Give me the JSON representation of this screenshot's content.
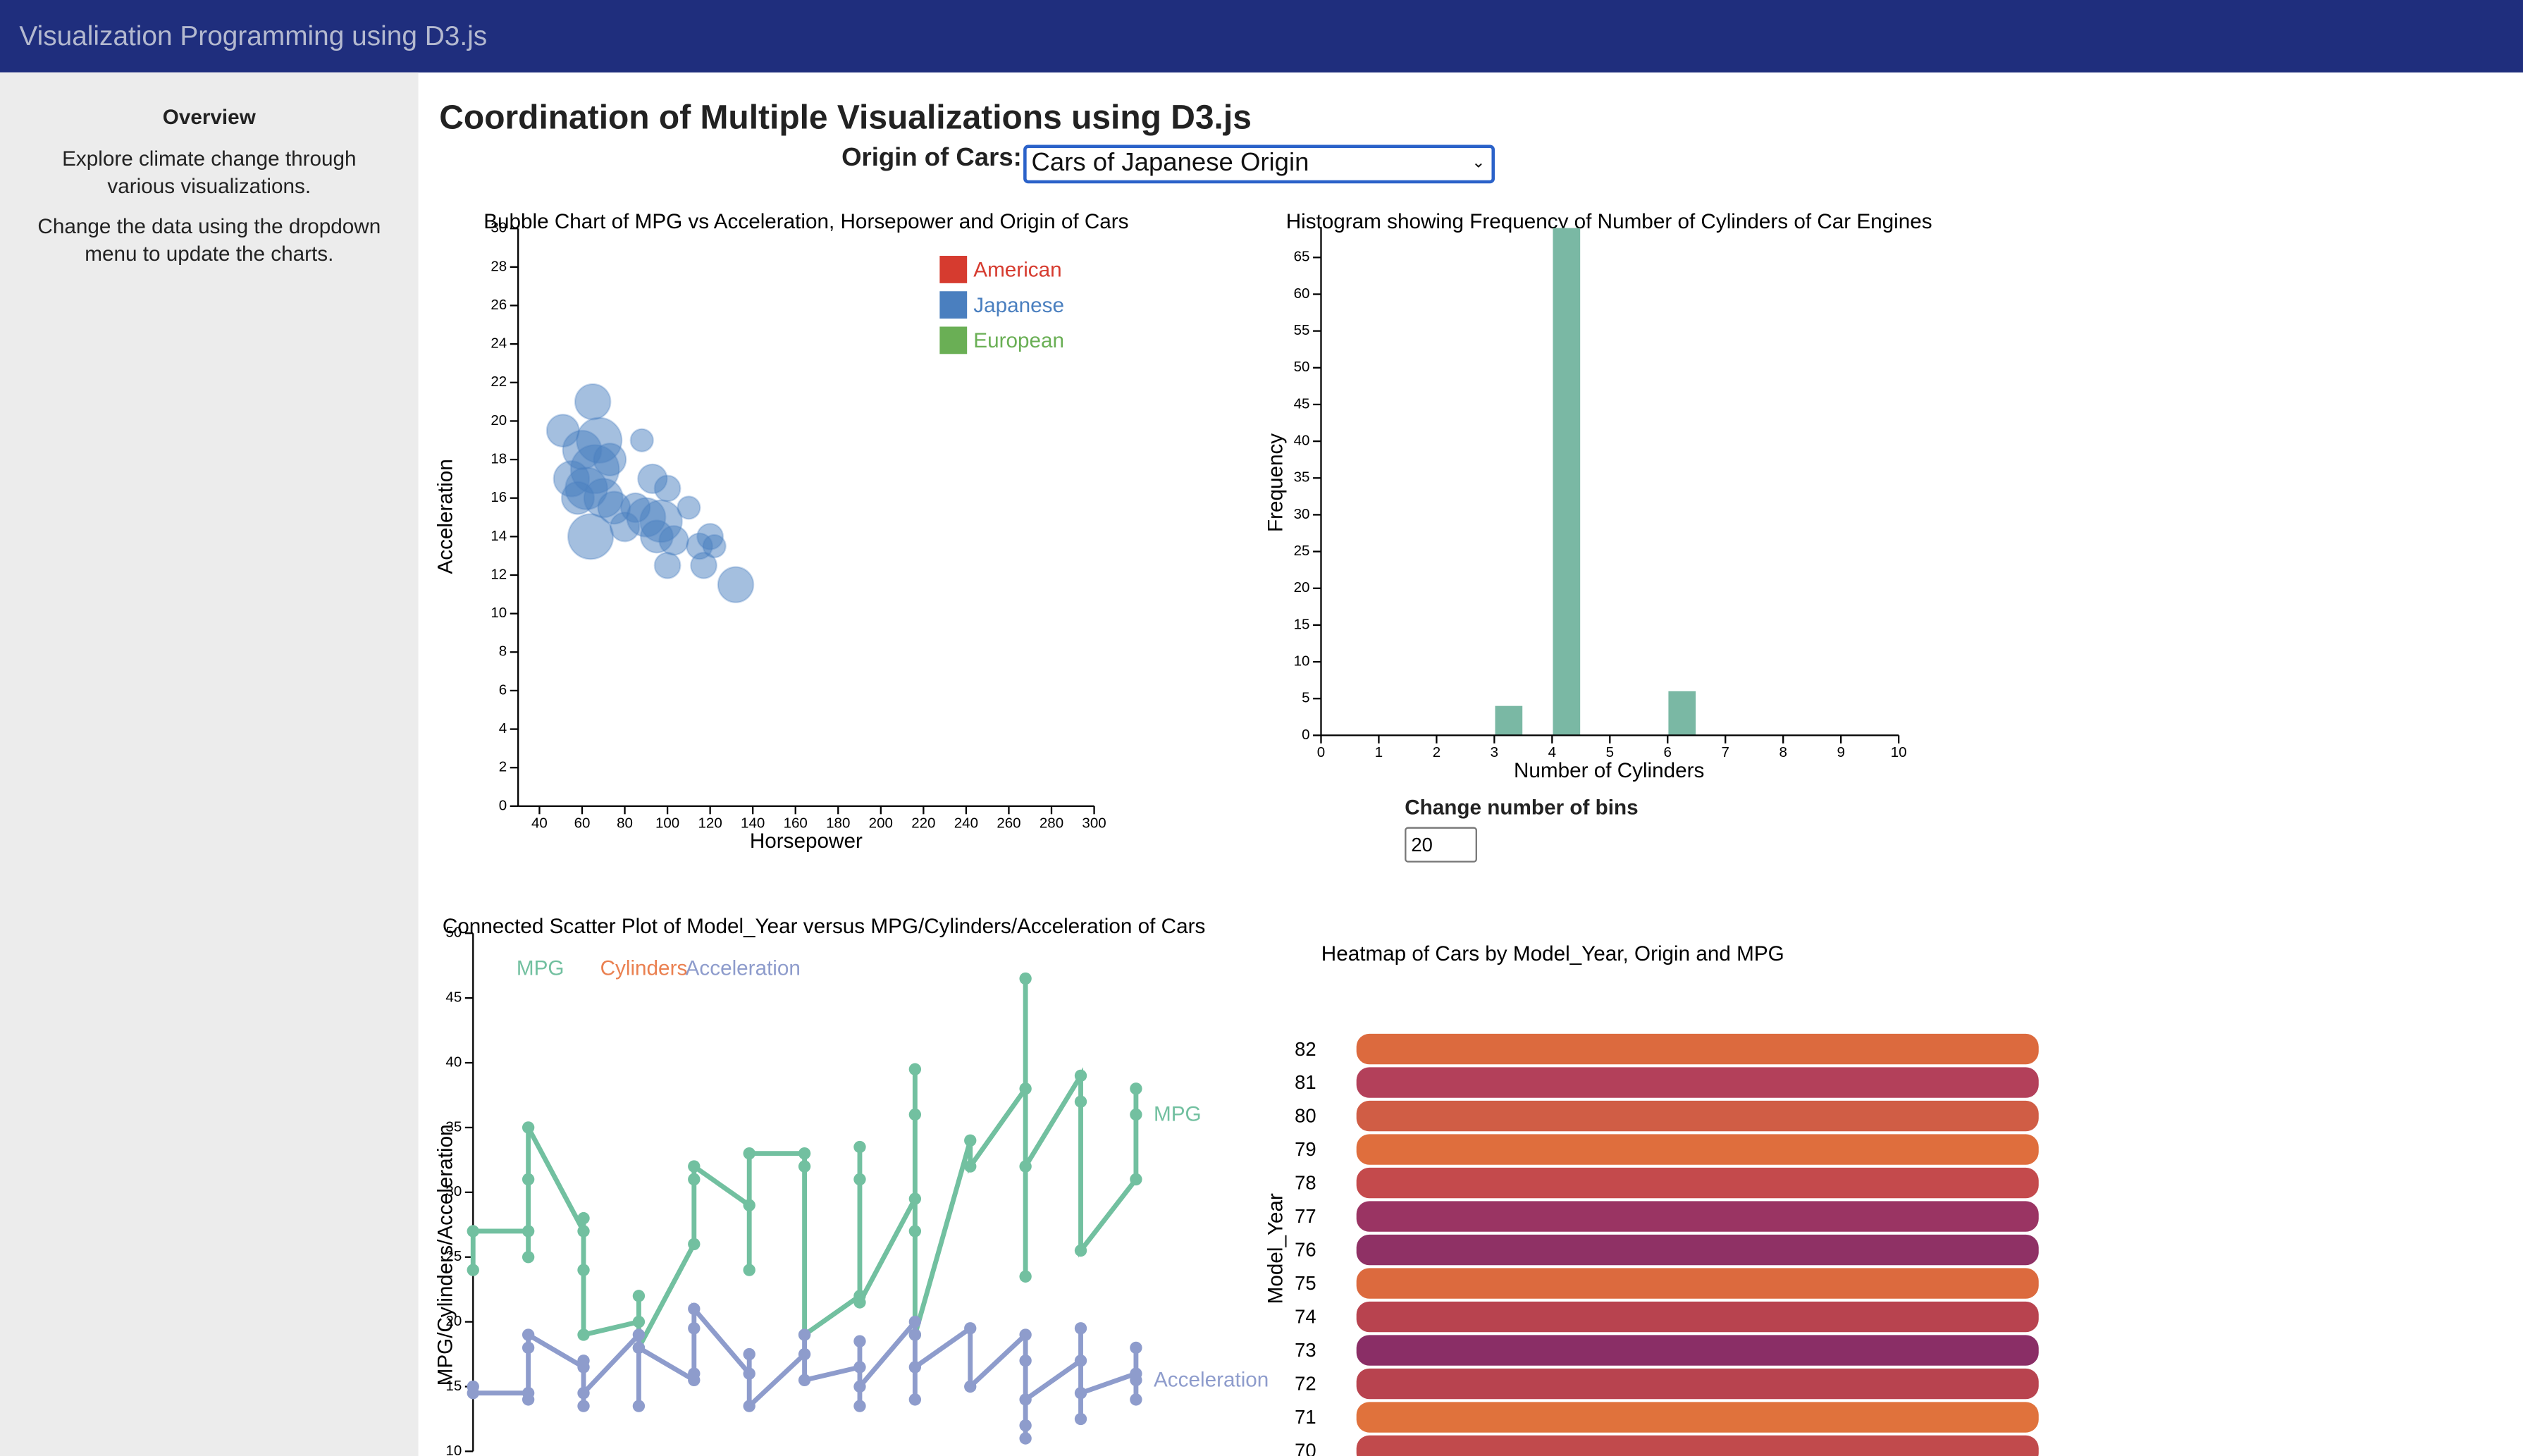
{
  "header": {
    "title": "Visualization Programming using D3.js"
  },
  "sidebar": {
    "heading": "Overview",
    "paragraphs": [
      "Explore climate change through various visualizations.",
      "Change the data using the dropdown menu to update the charts."
    ]
  },
  "main": {
    "title": "Coordination of Multiple Visualizations using D3.js",
    "dropdown": {
      "label": "Origin of Cars:",
      "selected": "Cars of Japanese Origin"
    },
    "bins_control": {
      "label": "Change number of bins",
      "value": 20
    }
  },
  "chart_data": [
    {
      "type": "bubble",
      "title": "Bubble Chart of MPG vs Acceleration, Horsepower and Origin of Cars",
      "x_label": "Horsepower",
      "y_label": "Acceleration",
      "xlim": [
        30,
        300
      ],
      "xticks": [
        40,
        60,
        80,
        100,
        120,
        140,
        160,
        180,
        200,
        220,
        240,
        260,
        280,
        300
      ],
      "ylim": [
        0,
        30
      ],
      "yticks": [
        0,
        2,
        4,
        6,
        8,
        10,
        12,
        14,
        16,
        18,
        20,
        22,
        24,
        26,
        28,
        30
      ],
      "series": [
        {
          "name": "American",
          "color": "#d63b2f",
          "x": [],
          "values": [],
          "sizes": []
        },
        {
          "name": "Japanese",
          "color": "#4a7fbf",
          "x": [
            65,
            51,
            88,
            60,
            68,
            66,
            55,
            62,
            70,
            75,
            64,
            80,
            93,
            100,
            90,
            97,
            95,
            103,
            100,
            110,
            115,
            117,
            120,
            122,
            132,
            73,
            58,
            85
          ],
          "values": [
            21,
            19.5,
            19,
            18.5,
            19,
            17.5,
            17,
            16.5,
            16,
            15.5,
            14,
            14.5,
            17,
            16.5,
            15,
            14.8,
            14,
            13.8,
            12.5,
            15.5,
            13.5,
            12.5,
            14,
            13.5,
            11.5,
            18,
            16,
            15.5
          ],
          "sizes": [
            11,
            10,
            7,
            12,
            14,
            15,
            11,
            13,
            12,
            10,
            14,
            9,
            9,
            8,
            12,
            13,
            10,
            9,
            8,
            7,
            8,
            8,
            8,
            7,
            11,
            10,
            10,
            9
          ]
        },
        {
          "name": "European",
          "color": "#6aaf55",
          "x": [],
          "values": [],
          "sizes": []
        }
      ]
    },
    {
      "type": "histogram",
      "title": "Histogram showing Frequency of Number of Cylinders of Car Engines",
      "x_label": "Number of Cylinders",
      "y_label": "Frequency",
      "color": "#7ab8a4",
      "bins": [
        0,
        0.5,
        1,
        1.5,
        2,
        2.5,
        3,
        3.5,
        4,
        4.5,
        5,
        5.5,
        6,
        6.5,
        7,
        7.5,
        8,
        8.5,
        9,
        9.5,
        10
      ],
      "counts": [
        0,
        0,
        0,
        0,
        0,
        0,
        4,
        0,
        69,
        0,
        0,
        0,
        6,
        0,
        0,
        0,
        0,
        0,
        0,
        0
      ],
      "xlim": [
        0,
        10
      ],
      "xticks": [
        0,
        1,
        2,
        3,
        4,
        5,
        6,
        7,
        8,
        9,
        10
      ],
      "ylim": [
        0,
        69
      ],
      "yticks": [
        0,
        5,
        10,
        15,
        20,
        25,
        30,
        35,
        40,
        45,
        50,
        55,
        60,
        65
      ]
    },
    {
      "type": "line",
      "title": "Connected Scatter Plot of Model_Year versus MPG/Cylinders/Acceleration of Cars",
      "y_label": "MPG/Cylinders/Acceleration",
      "xlim": [
        70,
        82
      ],
      "ylim": [
        10,
        50
      ],
      "yticks": [
        10,
        15,
        20,
        25,
        30,
        35,
        40,
        45,
        50
      ],
      "series": [
        {
          "name": "MPG",
          "color": "#72c0a0",
          "x": [
            70,
            70,
            71,
            71,
            71,
            71,
            72,
            72,
            72,
            72,
            73,
            73,
            73,
            74,
            74,
            74,
            75,
            75,
            75,
            76,
            76,
            76,
            77,
            77,
            77,
            77,
            78,
            78,
            78,
            78,
            78,
            79,
            79,
            80,
            80,
            80,
            80,
            81,
            81,
            81,
            82,
            82,
            82
          ],
          "values": [
            24,
            27,
            27,
            25,
            31,
            35,
            27,
            28,
            24,
            19,
            20,
            22,
            18,
            26,
            31,
            32,
            29,
            24,
            33,
            33,
            32,
            19,
            22,
            31,
            33.5,
            21.5,
            29.5,
            36,
            39.5,
            27,
            19,
            34,
            32,
            38,
            46.5,
            23.5,
            32,
            39,
            37,
            25.5,
            31,
            38,
            36
          ]
        },
        {
          "name": "Cylinders",
          "color": "#ea8050",
          "x": [],
          "values": []
        },
        {
          "name": "Acceleration",
          "color": "#8e9ccc",
          "x": [
            70,
            70,
            71,
            71,
            71,
            71,
            72,
            72,
            72,
            72,
            73,
            73,
            73,
            74,
            74,
            74,
            74,
            75,
            75,
            75,
            76,
            76,
            76,
            77,
            77,
            77,
            77,
            78,
            78,
            78,
            78,
            79,
            79,
            80,
            80,
            80,
            80,
            80,
            81,
            81,
            81,
            81,
            82,
            82,
            82,
            82
          ],
          "values": [
            15,
            14.5,
            14.5,
            14,
            18,
            19,
            16.5,
            17,
            13.5,
            14.5,
            19,
            13.5,
            18,
            15.5,
            16,
            19.5,
            21,
            16,
            17.5,
            13.5,
            17.5,
            19,
            15.5,
            16.5,
            18.5,
            13.5,
            15,
            20,
            19,
            14,
            16.5,
            19.5,
            15,
            19,
            11,
            17,
            12,
            14,
            17,
            19.5,
            12.5,
            14.5,
            16,
            18,
            14,
            15.5
          ]
        }
      ]
    },
    {
      "type": "heatmap",
      "title": "Heatmap of Cars by Model_Year, Origin and MPG",
      "y_label": "Model_Year",
      "categories": [
        82,
        81,
        80,
        79,
        78,
        77,
        76,
        75,
        74,
        73,
        72,
        71,
        70
      ],
      "values": [
        32,
        28,
        31,
        32.5,
        27,
        25,
        24,
        30.5,
        27,
        23,
        27,
        31,
        27.5
      ],
      "colors": [
        "#dc6a3e",
        "#b3405a",
        "#d05d45",
        "#df6e3d",
        "#c44a4c",
        "#9a3463",
        "#8f3165",
        "#dc6a3e",
        "#b8434f",
        "#8a2e66",
        "#b8434f",
        "#e0723c",
        "#c14a4c"
      ]
    }
  ]
}
